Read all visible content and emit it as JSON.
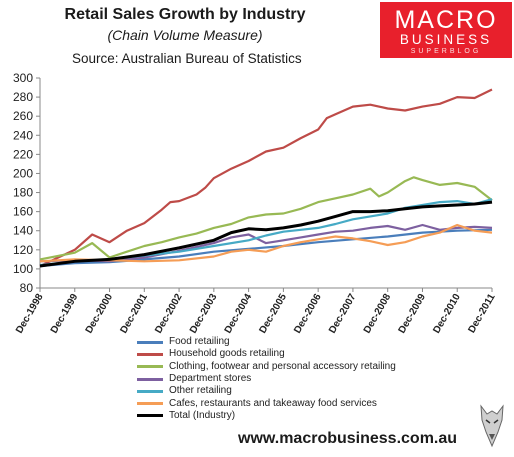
{
  "header": {
    "title": "Retail Sales Growth by Industry",
    "subtitle": "(Chain Volume Measure)",
    "source": "Source: Australian Bureau of Statistics"
  },
  "logo": {
    "line1": "MACRO",
    "line2": "BUSINESS",
    "line3": "SUPERBLOG"
  },
  "footer": {
    "url": "www.macrobusiness.com.au"
  },
  "chart_data": {
    "type": "line",
    "title": "Retail Sales Growth by Industry",
    "ylim": [
      80,
      300
    ],
    "ytick_step": 20,
    "grid": false,
    "legend_position": "bottom",
    "x_start_year": 1998,
    "x_end_year": 2011,
    "x_tick_labels": [
      "Dec-1998",
      "Dec-1999",
      "Dec-2000",
      "Dec-2001",
      "Dec-2002",
      "Dec-2003",
      "Dec-2004",
      "Dec-2005",
      "Dec-2006",
      "Dec-2007",
      "Dec-2008",
      "Dec-2009",
      "Dec-2010",
      "Dec-2011"
    ],
    "series": [
      {
        "name": "Food retailing",
        "color": "#4a7ebb",
        "points": [
          [
            1998,
            103
          ],
          [
            1999,
            106
          ],
          [
            2000,
            107
          ],
          [
            2001,
            110
          ],
          [
            2002,
            113
          ],
          [
            2003,
            118
          ],
          [
            2004,
            121
          ],
          [
            2005,
            124
          ],
          [
            2006,
            128
          ],
          [
            2007,
            131
          ],
          [
            2008,
            134
          ],
          [
            2009,
            138
          ],
          [
            2010,
            140
          ],
          [
            2011,
            141
          ]
        ]
      },
      {
        "name": "Household goods retailing",
        "color": "#be4b48",
        "points": [
          [
            1998,
            103
          ],
          [
            1999,
            120
          ],
          [
            1999.5,
            136
          ],
          [
            2000,
            128
          ],
          [
            2000.5,
            140
          ],
          [
            2001,
            148
          ],
          [
            2001.5,
            162
          ],
          [
            2001.75,
            170
          ],
          [
            2002,
            171
          ],
          [
            2002.5,
            178
          ],
          [
            2002.75,
            185
          ],
          [
            2003,
            195
          ],
          [
            2003.5,
            205
          ],
          [
            2004,
            213
          ],
          [
            2004.5,
            223
          ],
          [
            2005,
            227
          ],
          [
            2005.5,
            237
          ],
          [
            2006,
            246
          ],
          [
            2006.25,
            258
          ],
          [
            2006.5,
            262
          ],
          [
            2007,
            270
          ],
          [
            2007.5,
            272
          ],
          [
            2008,
            268
          ],
          [
            2008.5,
            266
          ],
          [
            2009,
            270
          ],
          [
            2009.5,
            273
          ],
          [
            2010,
            280
          ],
          [
            2010.5,
            279
          ],
          [
            2011,
            288
          ]
        ]
      },
      {
        "name": "Clothing, footwear and personal accessory retailing",
        "color": "#98b954",
        "points": [
          [
            1998,
            110
          ],
          [
            1999,
            117
          ],
          [
            1999.5,
            127
          ],
          [
            2000,
            112
          ],
          [
            2000.5,
            118
          ],
          [
            2001,
            124
          ],
          [
            2001.5,
            128
          ],
          [
            2002,
            133
          ],
          [
            2002.5,
            137
          ],
          [
            2003,
            143
          ],
          [
            2003.5,
            147
          ],
          [
            2004,
            154
          ],
          [
            2004.5,
            157
          ],
          [
            2005,
            158
          ],
          [
            2005.5,
            163
          ],
          [
            2006,
            170
          ],
          [
            2006.5,
            174
          ],
          [
            2007,
            178
          ],
          [
            2007.5,
            184
          ],
          [
            2007.75,
            176
          ],
          [
            2008,
            180
          ],
          [
            2008.5,
            192
          ],
          [
            2008.75,
            196
          ],
          [
            2009,
            193
          ],
          [
            2009.5,
            188
          ],
          [
            2010,
            190
          ],
          [
            2010.5,
            186
          ],
          [
            2011,
            172
          ]
        ]
      },
      {
        "name": "Department stores",
        "color": "#7d60a0",
        "points": [
          [
            1998,
            108
          ],
          [
            1999,
            109
          ],
          [
            2000,
            108
          ],
          [
            2001,
            112
          ],
          [
            2002,
            119
          ],
          [
            2003,
            127
          ],
          [
            2003.5,
            133
          ],
          [
            2004,
            136
          ],
          [
            2004.5,
            127
          ],
          [
            2005,
            130
          ],
          [
            2005.5,
            133
          ],
          [
            2006,
            136
          ],
          [
            2006.5,
            139
          ],
          [
            2007,
            140
          ],
          [
            2007.5,
            143
          ],
          [
            2008,
            145
          ],
          [
            2008.5,
            141
          ],
          [
            2009,
            146
          ],
          [
            2009.5,
            141
          ],
          [
            2010,
            143
          ],
          [
            2010.5,
            144
          ],
          [
            2011,
            143
          ]
        ]
      },
      {
        "name": "Other retailing",
        "color": "#46aac5",
        "points": [
          [
            1998,
            104
          ],
          [
            1999,
            108
          ],
          [
            2000,
            110
          ],
          [
            2001,
            114
          ],
          [
            2002,
            118
          ],
          [
            2003,
            124
          ],
          [
            2004,
            130
          ],
          [
            2004.5,
            135
          ],
          [
            2005,
            139
          ],
          [
            2005.5,
            141
          ],
          [
            2006,
            143
          ],
          [
            2006.5,
            147
          ],
          [
            2007,
            152
          ],
          [
            2007.5,
            155
          ],
          [
            2008,
            158
          ],
          [
            2008.5,
            164
          ],
          [
            2009,
            167
          ],
          [
            2009.5,
            170
          ],
          [
            2010,
            171
          ],
          [
            2010.5,
            168
          ],
          [
            2011,
            173
          ]
        ]
      },
      {
        "name": "Cafes, restaurants and takeaway food services",
        "color": "#f59d56",
        "points": [
          [
            1998,
            108
          ],
          [
            1999,
            110
          ],
          [
            2000,
            109
          ],
          [
            2001,
            108
          ],
          [
            2002,
            109
          ],
          [
            2003,
            113
          ],
          [
            2003.5,
            118
          ],
          [
            2004,
            120
          ],
          [
            2004.5,
            118
          ],
          [
            2005,
            124
          ],
          [
            2005.5,
            128
          ],
          [
            2006,
            131
          ],
          [
            2006.5,
            134
          ],
          [
            2007,
            132
          ],
          [
            2007.5,
            129
          ],
          [
            2008,
            125
          ],
          [
            2008.5,
            128
          ],
          [
            2009,
            134
          ],
          [
            2009.5,
            138
          ],
          [
            2010,
            146
          ],
          [
            2010.5,
            140
          ],
          [
            2011,
            138
          ]
        ]
      },
      {
        "name": "Total (Industry)",
        "color": "#000000",
        "points": [
          [
            1998,
            103
          ],
          [
            1999,
            108
          ],
          [
            2000,
            110
          ],
          [
            2001,
            115
          ],
          [
            2002,
            122
          ],
          [
            2003,
            130
          ],
          [
            2003.5,
            138
          ],
          [
            2004,
            142
          ],
          [
            2004.5,
            141
          ],
          [
            2005,
            143
          ],
          [
            2005.5,
            146
          ],
          [
            2006,
            150
          ],
          [
            2006.5,
            155
          ],
          [
            2007,
            160
          ],
          [
            2007.5,
            160
          ],
          [
            2008,
            161
          ],
          [
            2008.5,
            163
          ],
          [
            2009,
            165
          ],
          [
            2009.5,
            166
          ],
          [
            2010,
            167
          ],
          [
            2010.5,
            168
          ],
          [
            2011,
            170
          ]
        ]
      }
    ]
  }
}
